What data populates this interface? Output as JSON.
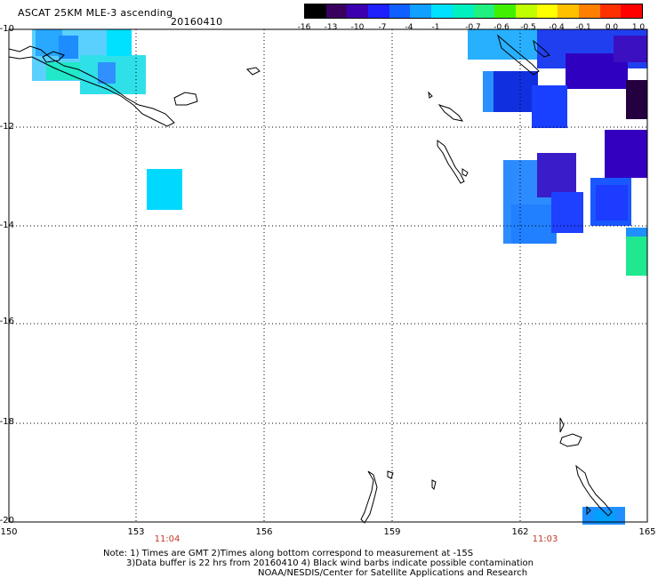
{
  "header": {
    "title": "ASCAT 25KM MLE-3 ascending",
    "date": "20160410"
  },
  "colorbar": {
    "labels": [
      "-16",
      "-13",
      "-10",
      "-7",
      "-4",
      "-1",
      "-0.7",
      "-0.6",
      "-0.5",
      "-0.4",
      "-0.1",
      "0.0",
      "1.0"
    ],
    "colors": [
      "#000000",
      "#3a0060",
      "#3c00b0",
      "#2020ff",
      "#1060ff",
      "#10a0ff",
      "#00e0ff",
      "#00f0c0",
      "#20f080",
      "#40f000",
      "#c0ff00",
      "#ffff00",
      "#ffc000",
      "#ff8000",
      "#ff3000",
      "#ff0000"
    ]
  },
  "map": {
    "lat_labels": [
      "-10",
      "-12",
      "-14",
      "-16",
      "-18",
      "-20"
    ],
    "lon_labels": [
      "150",
      "153",
      "156",
      "159",
      "162",
      "165"
    ],
    "pass_times": [
      "11:04",
      "11:03"
    ],
    "lat_range": [
      -20,
      -10
    ],
    "lon_range": [
      150,
      165
    ]
  },
  "footer": {
    "line1": "Note: 1) Times are GMT 2)Times along bottom correspond to measurement at -15S",
    "line2": "3)Data buffer is 22 hrs from 20160410 4) Black wind barbs indicate possible contamination",
    "line3": "NOAA/NESDIS/Center for Satellite Applications and Research"
  }
}
